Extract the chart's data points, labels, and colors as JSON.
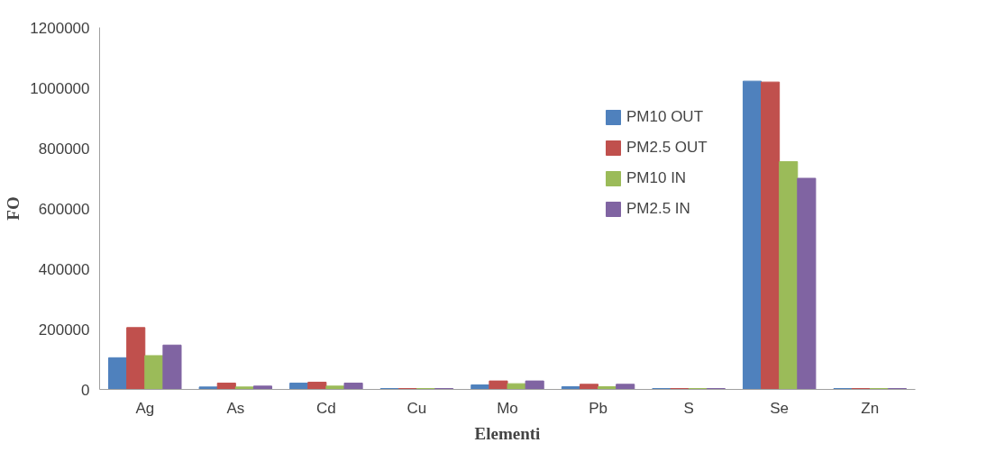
{
  "chart_data": {
    "type": "bar",
    "xlabel": "Elementi",
    "ylabel": "FO",
    "categories": [
      "Ag",
      "As",
      "Cd",
      "Cu",
      "Mo",
      "Pb",
      "S",
      "Se",
      "Zn"
    ],
    "series": [
      {
        "name": "PM10 OUT",
        "color": "#4f81bd",
        "values": [
          105000,
          8000,
          21000,
          3000,
          15000,
          9000,
          3000,
          1022000,
          3000
        ]
      },
      {
        "name": "PM2.5 OUT",
        "color": "#c0504d",
        "values": [
          205000,
          21000,
          24000,
          3000,
          28000,
          17000,
          3000,
          1019000,
          3000
        ]
      },
      {
        "name": "PM10 IN",
        "color": "#9bbb59",
        "values": [
          112000,
          8000,
          11000,
          3000,
          19000,
          9000,
          3000,
          755000,
          3000
        ]
      },
      {
        "name": "PM2.5 IN",
        "color": "#8064a2",
        "values": [
          147000,
          11000,
          21000,
          3000,
          28000,
          17000,
          3000,
          700000,
          3000
        ]
      }
    ],
    "ylim": [
      0,
      1200000
    ],
    "yticks": [
      0,
      200000,
      400000,
      600000,
      800000,
      1000000,
      1200000
    ],
    "grid": false,
    "legend": "top right"
  }
}
